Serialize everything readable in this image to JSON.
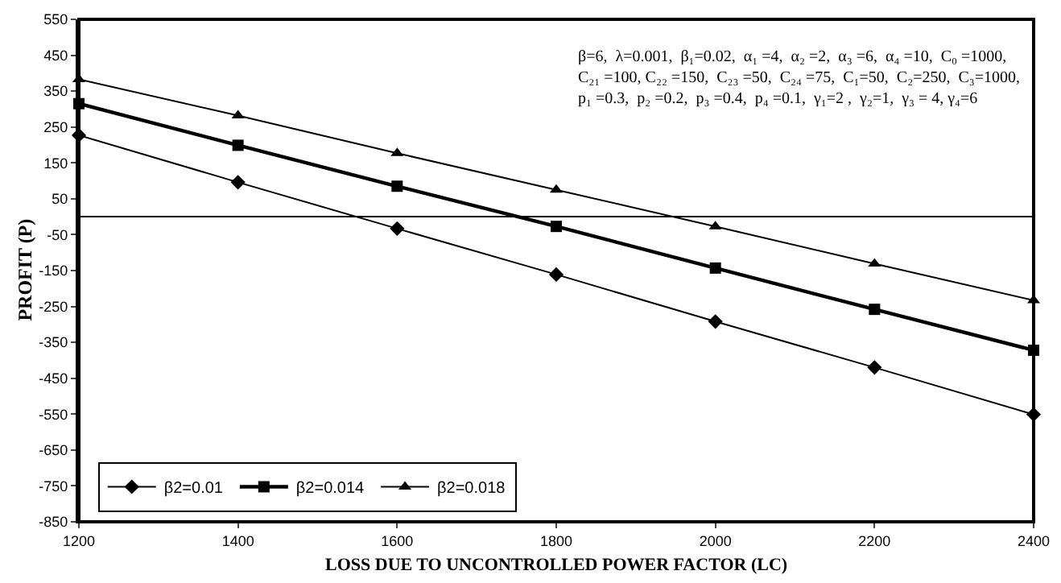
{
  "chart_data": {
    "type": "line",
    "xlabel": "LOSS DUE TO UNCONTROLLED POWER FACTOR (LC)",
    "ylabel": "PROFIT (P)",
    "x": [
      1200,
      1400,
      1600,
      1800,
      2000,
      2200,
      2400
    ],
    "series": [
      {
        "name": "β2=0.01",
        "color": "#000000",
        "marker": "diamond",
        "values": [
          227,
          96,
          -33,
          -161,
          -292,
          -420,
          -551
        ]
      },
      {
        "name": "β2=0.014",
        "color": "#000000",
        "marker": "square",
        "values": [
          315,
          199,
          85,
          -27,
          -143,
          -258,
          -372
        ]
      },
      {
        "name": "β2=0.018",
        "color": "#000000",
        "marker": "triangle",
        "values": [
          383,
          282,
          177,
          75,
          -27,
          -131,
          -233
        ]
      }
    ],
    "xlim": [
      1200,
      2400
    ],
    "xticks": [
      1200,
      1400,
      1600,
      1800,
      2000,
      2200,
      2400
    ],
    "ylim": [
      -850,
      550
    ],
    "yticks": [
      -850,
      -750,
      -650,
      -550,
      -450,
      -350,
      -250,
      -150,
      -50,
      50,
      150,
      250,
      350,
      450,
      550
    ],
    "grid": false,
    "legend": "bottom left",
    "line_style": "solid",
    "annotations": [
      "β=6,  λ=0.001,  β₁=0.02,  α₁ =4,  α₂ =2,  α₃ =6,  α₄ =10,  C₀ =1000,\nC₂₁ =100, C₂₂ =150,  C₂₃ =50,  C₂₄ =75,  C₁=50,  C₂=250,  C₃=1000,\np₁ =0.3,  p₂ =0.2,  p₃ =0.4,  p₄ =0.1,  γ₁=2 ,  γ₂=1,  γ₃ = 4, γ₄=6"
    ]
  }
}
